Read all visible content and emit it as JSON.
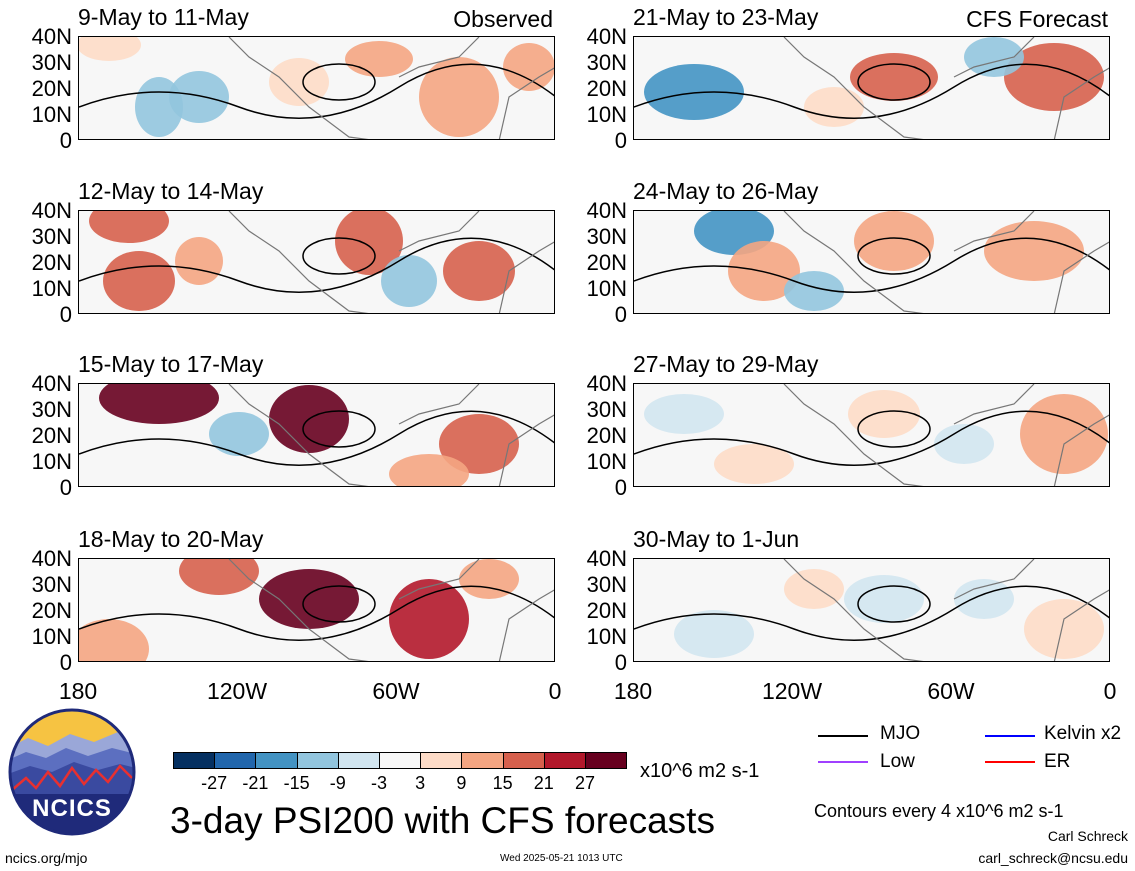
{
  "panels": [
    {
      "title": "9-May to 11-May",
      "tag": "Observed"
    },
    {
      "title": "12-May to 14-May",
      "tag": ""
    },
    {
      "title": "15-May to 17-May",
      "tag": ""
    },
    {
      "title": "18-May to 20-May",
      "tag": ""
    },
    {
      "title": "21-May to 23-May",
      "tag": "CFS Forecast"
    },
    {
      "title": "24-May to 26-May",
      "tag": ""
    },
    {
      "title": "27-May to 29-May",
      "tag": ""
    },
    {
      "title": "30-May to 1-Jun",
      "tag": ""
    }
  ],
  "lat_labels": [
    "40N",
    "30N",
    "20N",
    "10N",
    "0"
  ],
  "lon_labels": [
    "180",
    "120W",
    "60W",
    "0"
  ],
  "colorbar": {
    "colors": [
      "#053061",
      "#2166ac",
      "#4393c3",
      "#92c5de",
      "#d1e5f0",
      "#f7f7f7",
      "#fddbc7",
      "#f4a582",
      "#d6604d",
      "#b2182b",
      "#67001f"
    ],
    "ticks": [
      "-27",
      "-21",
      "-15",
      "-9",
      "-3",
      "3",
      "9",
      "15",
      "21",
      "27"
    ],
    "units": "x10^6 m2 s-1"
  },
  "legend": {
    "items": [
      {
        "label": "MJO",
        "color": "#000000"
      },
      {
        "label": "Kelvin x2",
        "color": "#0000ff"
      },
      {
        "label": "Low",
        "color": "#a040ff"
      },
      {
        "label": "ER",
        "color": "#ff0000"
      }
    ],
    "contour_note": "Contours every 4 x10^6 m2 s-1"
  },
  "footer": {
    "title": "3-day PSI200 with CFS forecasts",
    "logo_text": "NCICS",
    "url": "ncics.org/mjo",
    "timestamp": "Wed 2025-05-21 1013 UTC",
    "author": "Carl Schreck",
    "email": "carl_schreck@ncsu.edu"
  }
}
